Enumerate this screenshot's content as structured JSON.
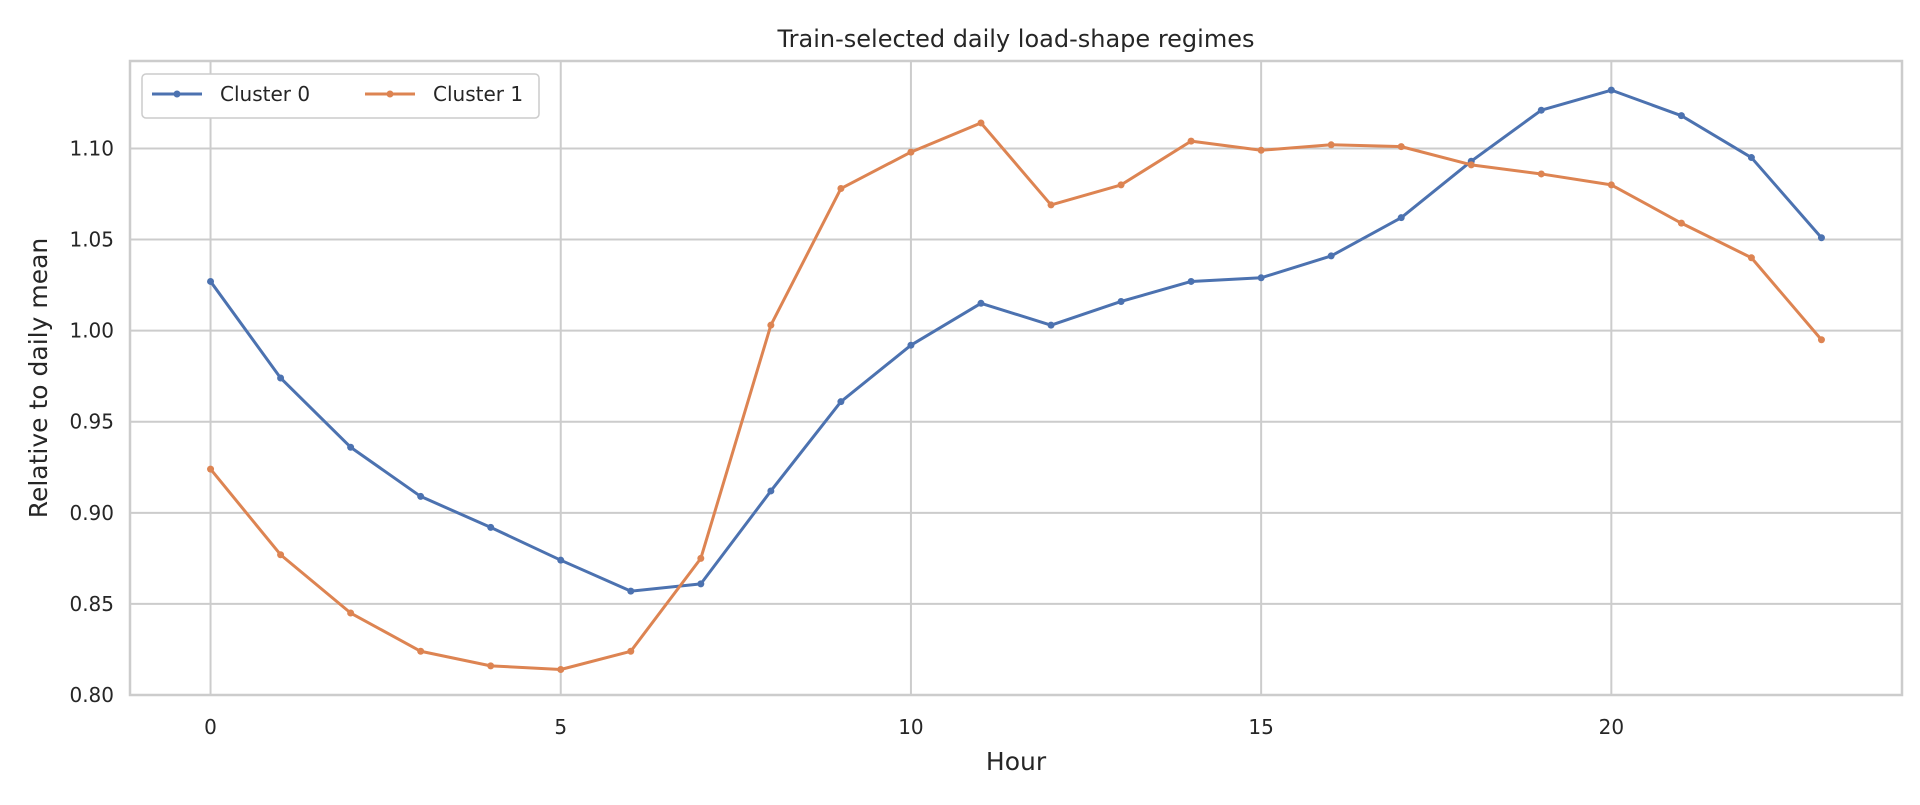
{
  "chart_data": {
    "type": "line",
    "title": "Train-selected daily load-shape regimes",
    "xlabel": "Hour",
    "ylabel": "Relative to daily mean",
    "x": [
      0,
      1,
      2,
      3,
      4,
      5,
      6,
      7,
      8,
      9,
      10,
      11,
      12,
      13,
      14,
      15,
      16,
      17,
      18,
      19,
      20,
      21,
      22,
      23
    ],
    "xlim": [
      -1.15,
      24.15
    ],
    "ylim": [
      0.8,
      1.148
    ],
    "xticks": [
      0,
      5,
      10,
      15,
      20
    ],
    "xtick_labels": [
      "0",
      "5",
      "10",
      "15",
      "20"
    ],
    "yticks": [
      0.8,
      0.85,
      0.9,
      0.95,
      1.0,
      1.05,
      1.1
    ],
    "ytick_labels": [
      "0.80",
      "0.85",
      "0.90",
      "0.95",
      "1.00",
      "1.05",
      "1.10"
    ],
    "grid": true,
    "legend_position": "top-left",
    "series": [
      {
        "name": "Cluster 0",
        "color": "#4c72b0",
        "marker": "dot",
        "values": [
          1.027,
          0.974,
          0.936,
          0.909,
          0.892,
          0.874,
          0.857,
          0.861,
          0.912,
          0.961,
          0.992,
          1.015,
          1.003,
          1.016,
          1.027,
          1.029,
          1.041,
          1.062,
          1.093,
          1.121,
          1.132,
          1.118,
          1.095,
          1.051
        ]
      },
      {
        "name": "Cluster 1",
        "color": "#dd8452",
        "marker": "dot",
        "values": [
          0.924,
          0.877,
          0.845,
          0.824,
          0.816,
          0.814,
          0.824,
          0.875,
          1.003,
          1.078,
          1.098,
          1.114,
          1.069,
          1.08,
          1.104,
          1.099,
          1.102,
          1.101,
          1.091,
          1.086,
          1.08,
          1.059,
          1.04,
          0.995
        ]
      }
    ]
  }
}
